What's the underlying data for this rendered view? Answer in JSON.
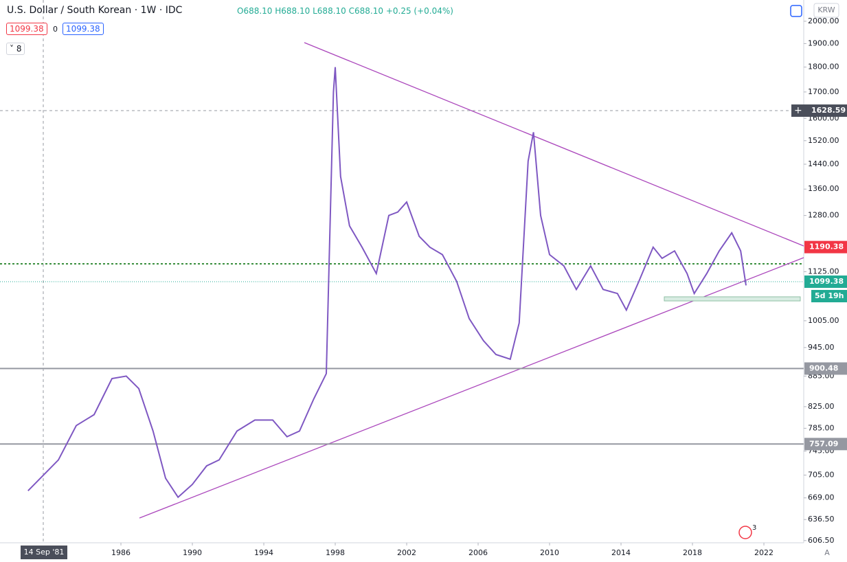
{
  "chart_data": {
    "type": "line",
    "title": "U.S. Dollar / South Korean · 1W · IDC",
    "ohlc": [
      "O688.10",
      "H688.10",
      "L688.10",
      "C688.10"
    ],
    "change": "+0.25 (+0.04%)",
    "badges": [
      "1099.38",
      "0",
      "1099.38"
    ],
    "indicators_count": "8",
    "currency": "KRW",
    "countdown": "5d 19h",
    "crosshair_date": "14 Sep '81",
    "crosshair_price": 1628.59,
    "scale_mode": "A",
    "notification_count": "3",
    "log_scale": true,
    "grid": false,
    "color": "#7e57c2",
    "x": [
      1980.8,
      1982.5,
      1983.5,
      1984.5,
      1985.5,
      1986.3,
      1987.0,
      1987.8,
      1988.5,
      1989.2,
      1990.0,
      1990.8,
      1991.5,
      1992.5,
      1993.5,
      1994.5,
      1995.3,
      1996.0,
      1996.8,
      1997.5,
      1997.9,
      1998.0,
      1998.3,
      1998.8,
      1999.5,
      2000.3,
      2001.0,
      2001.5,
      2002.0,
      2002.7,
      2003.3,
      2004.0,
      2004.8,
      2005.5,
      2006.3,
      2007.0,
      2007.8,
      2008.3,
      2008.8,
      2009.1,
      2009.5,
      2010.0,
      2010.8,
      2011.5,
      2012.3,
      2013.0,
      2013.8,
      2014.3,
      2015.0,
      2015.8,
      2016.3,
      2017.0,
      2017.7,
      2018.1,
      2018.8,
      2019.5,
      2020.2,
      2020.7,
      2021.0
    ],
    "values": [
      680,
      730,
      790,
      810,
      880,
      885,
      860,
      780,
      700,
      670,
      690,
      720,
      730,
      780,
      800,
      800,
      770,
      780,
      840,
      890,
      1700,
      1800,
      1400,
      1250,
      1190,
      1120,
      1280,
      1290,
      1320,
      1220,
      1190,
      1170,
      1100,
      1010,
      960,
      930,
      920,
      1000,
      1450,
      1550,
      1280,
      1170,
      1140,
      1080,
      1140,
      1080,
      1070,
      1030,
      1100,
      1190,
      1160,
      1180,
      1120,
      1070,
      1120,
      1180,
      1230,
      1180,
      1090
    ],
    "xlim": [
      1979.23,
      2024.23
    ],
    "xticks": [
      1986,
      1990,
      1994,
      1998,
      2002,
      2006,
      2010,
      2014,
      2018,
      2022
    ],
    "ylim": [
      594,
      2100
    ],
    "yticks": [
      {
        "value": 2000,
        "label": "2000.00"
      },
      {
        "value": 1900,
        "label": "1900.00"
      },
      {
        "value": 1800,
        "label": "1800.00"
      },
      {
        "value": 1700,
        "label": "1700.00"
      },
      {
        "value": 1600,
        "label": "1600.00"
      },
      {
        "value": 1520,
        "label": "1520.00"
      },
      {
        "value": 1440,
        "label": "1440.00"
      },
      {
        "value": 1360,
        "label": "1360.00"
      },
      {
        "value": 1280,
        "label": "1280.00"
      },
      {
        "value": 1125,
        "label": "1125.00"
      },
      {
        "value": 1005,
        "label": "1005.00"
      },
      {
        "value": 945,
        "label": "945.00"
      },
      {
        "value": 885,
        "label": "885.00"
      },
      {
        "value": 825,
        "label": "825.00"
      },
      {
        "value": 785,
        "label": "785.00"
      },
      {
        "value": 745,
        "label": "745.00"
      },
      {
        "value": 705,
        "label": "705.00"
      },
      {
        "value": 669,
        "label": "669.00"
      },
      {
        "value": 636.5,
        "label": "636.50"
      },
      {
        "value": 606.5,
        "label": "606.50"
      }
    ],
    "price_lines": [
      {
        "value": 1190.38,
        "color": "#f23645",
        "line": false
      },
      {
        "value": 1099.38,
        "color": "#22ab94",
        "line": true
      },
      {
        "value": 900.48,
        "color": "#9598a1",
        "line": true
      },
      {
        "value": 757.09,
        "color": "#9598a1",
        "line": true
      }
    ]
  }
}
